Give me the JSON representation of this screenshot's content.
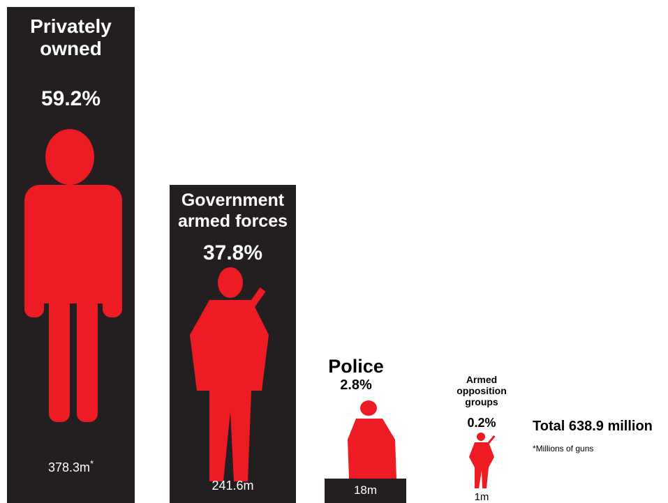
{
  "items": [
    {
      "label": "Privately owned",
      "share": "59.2%",
      "amount": "378.3m",
      "note_marker": "*"
    },
    {
      "label": "Government armed forces",
      "share": "37.8%",
      "amount": "241.6m"
    },
    {
      "label": "Police",
      "share": "2.8%",
      "amount": "18m"
    },
    {
      "label": "Armed opposition groups",
      "share": "0.2%",
      "amount": "1m"
    }
  ],
  "total": "Total 638.9 million",
  "footnote": "*Millions of guns"
}
